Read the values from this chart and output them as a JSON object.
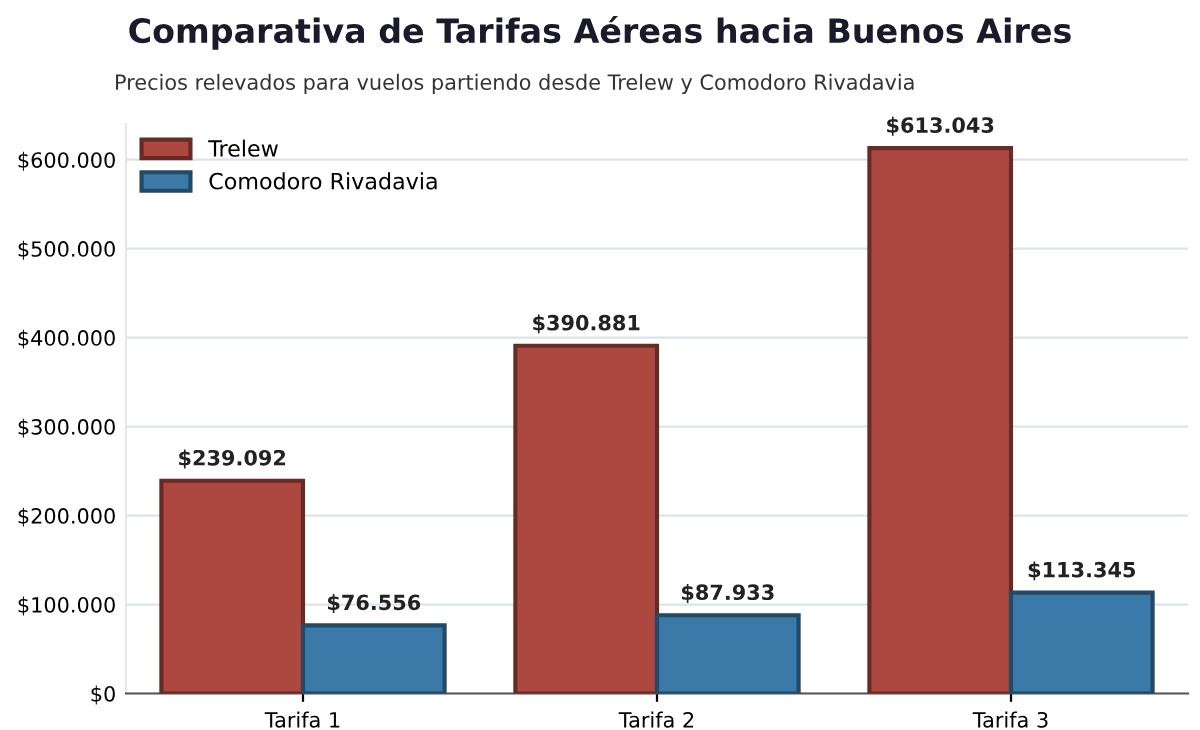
{
  "chart_data": {
    "type": "bar",
    "title": "Comparativa de Tarifas Aéreas hacia Buenos Aires",
    "subtitle": "Precios relevados para vuelos partiendo desde Trelew y Comodoro Rivadavia",
    "categories": [
      "Tarifa 1",
      "Tarifa 2",
      "Tarifa 3"
    ],
    "series": [
      {
        "name": "Trelew",
        "color": "#ac4840",
        "values": [
          239092,
          390881,
          613043
        ],
        "value_labels": [
          "$239.092",
          "$390.881",
          "$613.043"
        ]
      },
      {
        "name": "Comodoro Rivadavia",
        "color": "#3a79a8",
        "values": [
          76556,
          87933,
          113345
        ],
        "value_labels": [
          "$76.556",
          "$87.933",
          "$113.345"
        ]
      }
    ],
    "ylim": [
      0,
      640000
    ],
    "yticks": [
      {
        "value": 0,
        "label": "$0"
      },
      {
        "value": 100000,
        "label": "$100.000"
      },
      {
        "value": 200000,
        "label": "$200.000"
      },
      {
        "value": 300000,
        "label": "$300.000"
      },
      {
        "value": 400000,
        "label": "$400.000"
      },
      {
        "value": 500000,
        "label": "$500.000"
      },
      {
        "value": 600000,
        "label": "$600.000"
      }
    ],
    "grid": "y",
    "legend": "top left"
  }
}
